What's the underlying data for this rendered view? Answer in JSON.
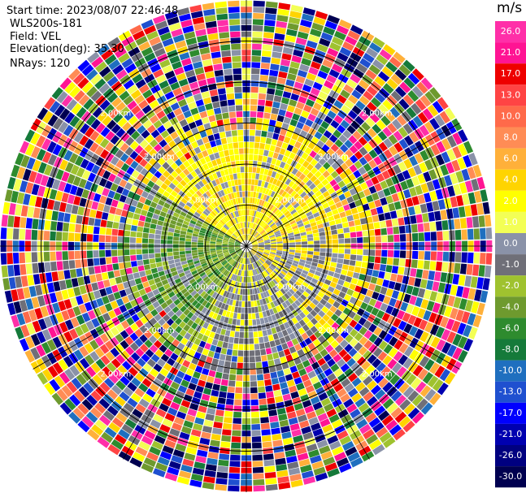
{
  "header": {
    "start_time": "Start time: 2023/08/07 22:46:48",
    "instrument": "WLS200s-181",
    "field": "Field: VEL",
    "elevation": "Elevation(deg): 35.30",
    "nrays": "NRays: 120"
  },
  "chart_data": {
    "type": "heatmap",
    "projection": "polar (PPI)",
    "field": "VEL",
    "units": "m/s",
    "elevation_deg": 35.3,
    "n_rays": 120,
    "range_rings_km": [
      1.0,
      2.0,
      3.0,
      4.0,
      5.0
    ],
    "range_ring_label": "2.00km",
    "colorbar": {
      "ticks": [
        "26.0",
        "21.0",
        "17.0",
        "13.0",
        "10.0",
        "8.0",
        "6.0",
        "4.0",
        "2.0",
        "1.0",
        "0.0",
        "-1.0",
        "-2.0",
        "-4.0",
        "-6.0",
        "-8.0",
        "-10.0",
        "-13.0",
        "-17.0",
        "-21.0",
        "-26.0",
        "-30.0"
      ],
      "colors": [
        "#ff2fa8",
        "#ff1493",
        "#ee0000",
        "#ff4444",
        "#ff6a4a",
        "#ff8c55",
        "#ffb03a",
        "#ffd400",
        "#ffff00",
        "#f3ff55",
        "#8a92a8",
        "#6f6f78",
        "#9fc22f",
        "#6e9a2e",
        "#2e8b2e",
        "#157a3a",
        "#1f6fbf",
        "#1f50d0",
        "#0000ff",
        "#0000b0",
        "#000080",
        "#000050"
      ]
    },
    "gates_per_ray": 40,
    "max_range_km": 6.0,
    "description_zones": {
      "inner_km": [
        0,
        2.4
      ],
      "near_zero_west_south": true,
      "positive_north_east": true,
      "noise_beyond_km": 3.0
    }
  }
}
